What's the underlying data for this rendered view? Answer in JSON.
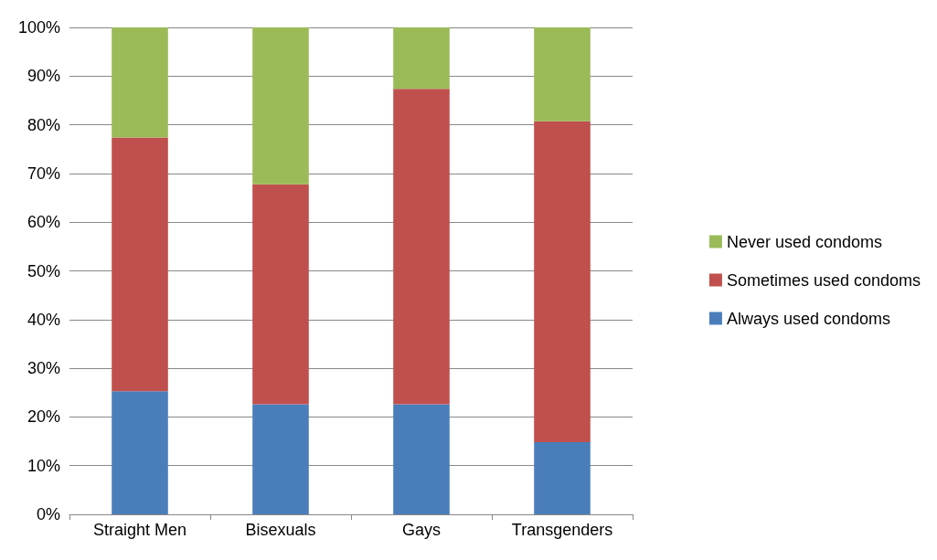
{
  "chart_data": {
    "type": "bar",
    "stacked": true,
    "categories": [
      "Straight Men",
      "Bisexuals",
      "Gays",
      "Transgenders"
    ],
    "series": [
      {
        "name": "Always used condoms",
        "color": "#4a7ebb",
        "values": [
          25.3,
          22.6,
          22.6,
          14.8
        ]
      },
      {
        "name": "Sometimes used condoms",
        "color": "#c0504d",
        "values": [
          52.1,
          45.2,
          64.8,
          65.9
        ]
      },
      {
        "name": "Never used condoms",
        "color": "#9bbb59",
        "values": [
          22.6,
          32.2,
          12.6,
          19.3
        ]
      }
    ],
    "ylim": [
      0,
      100
    ],
    "yticks": [
      {
        "value": 0,
        "label": "0%"
      },
      {
        "value": 10,
        "label": "10%"
      },
      {
        "value": 20,
        "label": "20%"
      },
      {
        "value": 30,
        "label": "30%"
      },
      {
        "value": 40,
        "label": "40%"
      },
      {
        "value": 50,
        "label": "50%"
      },
      {
        "value": 60,
        "label": "60%"
      },
      {
        "value": 70,
        "label": "70%"
      },
      {
        "value": 80,
        "label": "80%"
      },
      {
        "value": 90,
        "label": "90%"
      },
      {
        "value": 100,
        "label": "100%"
      }
    ],
    "grid": "y",
    "legend": "right"
  }
}
